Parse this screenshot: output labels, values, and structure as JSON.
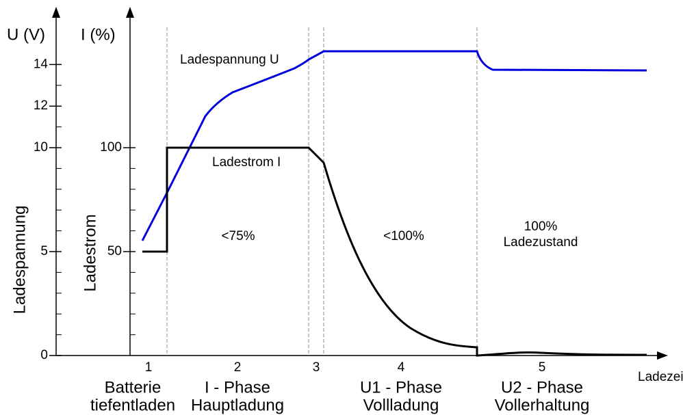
{
  "axes": {
    "u_unit": "U (V)",
    "i_unit": "I (%)",
    "u_title": "Ladespannung",
    "i_title": "Ladestrom",
    "x_title": "Ladezeit",
    "u_ticks": [
      0,
      5,
      10,
      12,
      14
    ],
    "i_ticks": [
      50,
      100
    ]
  },
  "curves": {
    "voltage": "Ladespannung U",
    "current": "Ladestrom I"
  },
  "regions": [
    "<75%",
    "<100%",
    "100%",
    "Ladezustand"
  ],
  "phases": [
    {
      "number": "1",
      "name": "Batterie",
      "detail": "tiefentladen"
    },
    {
      "number": "2",
      "name": "I - Phase",
      "detail": "Hauptladung"
    },
    {
      "number": "3"
    },
    {
      "number": "4",
      "name": "U1 - Phase",
      "detail": "Vollladung"
    },
    {
      "number": "5",
      "name": "U2 - Phase",
      "detail": "Vollerhaltung"
    }
  ]
}
